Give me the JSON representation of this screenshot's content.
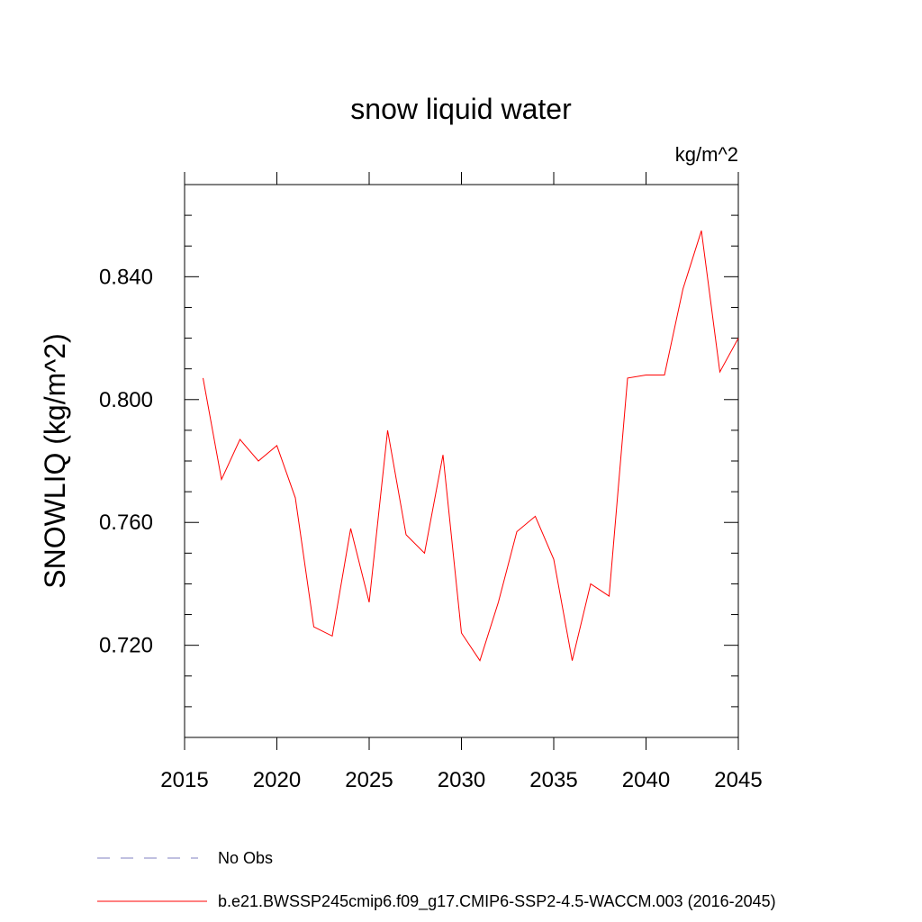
{
  "chart_data": {
    "type": "line",
    "title": "snow liquid water",
    "units": "kg/m^2",
    "ylabel": "SNOWLIQ  (kg/m^2)",
    "xlabel": "",
    "xlim": [
      2015,
      2045
    ],
    "ylim": [
      0.69,
      0.87
    ],
    "xticks": [
      "2015",
      "2020",
      "2025",
      "2030",
      "2035",
      "2040",
      "2045"
    ],
    "xtick_values": [
      2015,
      2020,
      2025,
      2030,
      2035,
      2040,
      2045
    ],
    "yticks": [
      "0.720",
      "0.760",
      "0.800",
      "0.840"
    ],
    "ytick_values": [
      0.72,
      0.76,
      0.8,
      0.84
    ],
    "grid": false,
    "legend_position": "bottom",
    "series": [
      {
        "name": "b.e21.BWSSP245cmip6.f09_g17.CMIP6-SSP2-4.5-WACCM.003 (2016-2045)",
        "color": "#ff0000",
        "style": "solid",
        "x": [
          2016,
          2017,
          2018,
          2019,
          2020,
          2021,
          2022,
          2023,
          2024,
          2025,
          2026,
          2027,
          2028,
          2029,
          2030,
          2031,
          2032,
          2033,
          2034,
          2035,
          2036,
          2037,
          2038,
          2039,
          2040,
          2041,
          2042,
          2043,
          2044,
          2045
        ],
        "values": [
          0.807,
          0.774,
          0.787,
          0.78,
          0.785,
          0.768,
          0.726,
          0.723,
          0.758,
          0.734,
          0.79,
          0.756,
          0.75,
          0.782,
          0.724,
          0.715,
          0.734,
          0.757,
          0.762,
          0.748,
          0.715,
          0.74,
          0.736,
          0.807,
          0.808,
          0.808,
          0.836,
          0.855,
          0.809,
          0.82
        ]
      },
      {
        "name": "No Obs",
        "color": "#8080c0",
        "style": "dashed",
        "x": [],
        "values": []
      }
    ]
  }
}
